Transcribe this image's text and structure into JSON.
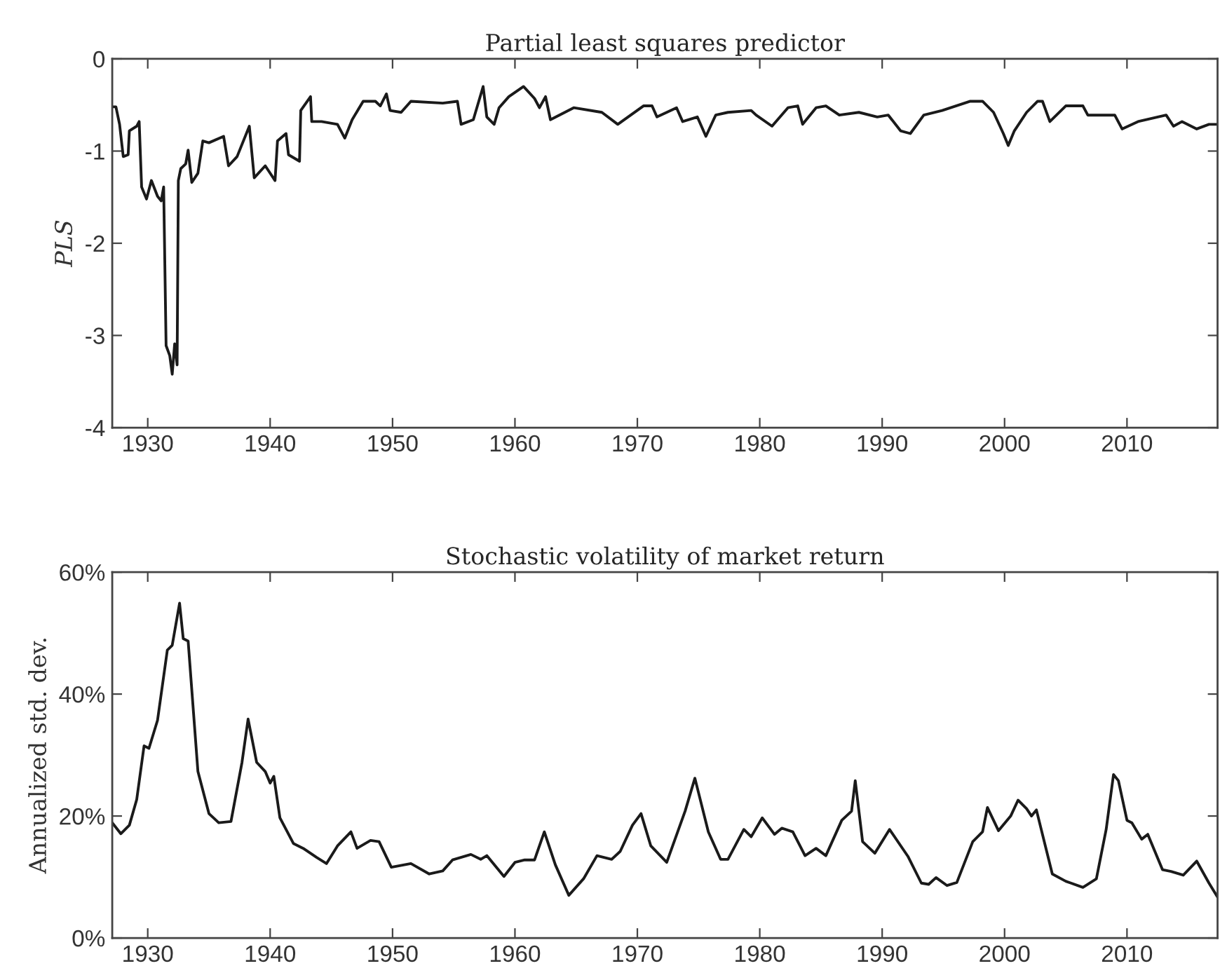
{
  "chart_data": [
    {
      "type": "line",
      "title": "Partial least squares predictor",
      "ylabel": "PLS",
      "xlim": [
        1927.1,
        2017.4
      ],
      "xticks": [
        1930,
        1940,
        1950,
        1960,
        1970,
        1980,
        1990,
        2000,
        2010
      ],
      "ylim": [
        -4,
        0
      ],
      "yticks": [
        {
          "value": -4,
          "label": "-4"
        },
        {
          "value": -3,
          "label": "-3"
        },
        {
          "value": -2,
          "label": "-2"
        },
        {
          "value": -1,
          "label": "-1"
        },
        0
      ],
      "grid": false,
      "legend": false,
      "series": [
        {
          "color": "#1a1a1a",
          "x": [
            1927.1,
            1927.4,
            1927.7,
            1928.0,
            1928.4,
            1928.5,
            1929.1,
            1929.3,
            1929.5,
            1929.9,
            1930.3,
            1930.8,
            1931.1,
            1931.3,
            1931.5,
            1931.8,
            1932.0,
            1932.2,
            1932.4,
            1932.5,
            1932.7,
            1933.1,
            1933.3,
            1933.6,
            1934.1,
            1934.5,
            1935.0,
            1936.2,
            1936.6,
            1937.3,
            1938.3,
            1938.7,
            1939.6,
            1940.4,
            1940.6,
            1941.3,
            1941.5,
            1942.4,
            1942.5,
            1943.3,
            1943.4,
            1944.2,
            1945.5,
            1946.1,
            1946.7,
            1947.6,
            1948.6,
            1949.0,
            1949.5,
            1949.8,
            1950.7,
            1951.5,
            1954.1,
            1955.3,
            1955.6,
            1956.6,
            1957.4,
            1957.7,
            1958.3,
            1958.7,
            1959.5,
            1960.7,
            1961.6,
            1962.0,
            1962.5,
            1962.9,
            1964.8,
            1967.1,
            1968.4,
            1970.5,
            1971.2,
            1971.6,
            1973.2,
            1973.7,
            1974.9,
            1975.6,
            1976.4,
            1977.4,
            1979.3,
            1979.7,
            1981.0,
            1982.3,
            1983.1,
            1983.5,
            1984.6,
            1985.4,
            1986.5,
            1988.1,
            1989.6,
            1990.5,
            1991.5,
            1992.3,
            1993.4,
            1994.9,
            1997.2,
            1998.2,
            1999.1,
            1999.9,
            2000.3,
            2000.8,
            2001.8,
            2002.7,
            2003.1,
            2003.7,
            2005.0,
            2006.4,
            2006.8,
            2009.0,
            2009.6,
            2010.9,
            2013.2,
            2013.8,
            2014.5,
            2015.7,
            2016.7,
            2017.4
          ],
          "values": [
            -0.52,
            -0.52,
            -0.71,
            -1.06,
            -1.04,
            -0.78,
            -0.73,
            -0.68,
            -1.39,
            -1.52,
            -1.32,
            -1.49,
            -1.54,
            -1.39,
            -3.11,
            -3.22,
            -3.42,
            -3.09,
            -3.32,
            -1.32,
            -1.19,
            -1.14,
            -0.99,
            -1.34,
            -1.24,
            -0.89,
            -0.91,
            -0.84,
            -1.16,
            -1.06,
            -0.73,
            -1.29,
            -1.16,
            -1.32,
            -0.89,
            -0.81,
            -1.04,
            -1.11,
            -0.56,
            -0.41,
            -0.68,
            -0.68,
            -0.71,
            -0.86,
            -0.66,
            -0.46,
            -0.46,
            -0.51,
            -0.38,
            -0.56,
            -0.58,
            -0.46,
            -0.48,
            -0.46,
            -0.71,
            -0.66,
            -0.3,
            -0.63,
            -0.71,
            -0.53,
            -0.41,
            -0.3,
            -0.43,
            -0.53,
            -0.41,
            -0.66,
            -0.53,
            -0.58,
            -0.71,
            -0.51,
            -0.51,
            -0.63,
            -0.53,
            -0.68,
            -0.63,
            -0.84,
            -0.61,
            -0.58,
            -0.56,
            -0.61,
            -0.73,
            -0.53,
            -0.51,
            -0.71,
            -0.53,
            -0.51,
            -0.61,
            -0.58,
            -0.63,
            -0.61,
            -0.78,
            -0.81,
            -0.61,
            -0.56,
            -0.46,
            -0.46,
            -0.58,
            -0.81,
            -0.94,
            -0.78,
            -0.58,
            -0.46,
            -0.46,
            -0.68,
            -0.51,
            -0.51,
            -0.61,
            -0.61,
            -0.76,
            -0.68,
            -0.61,
            -0.73,
            -0.68,
            -0.76,
            -0.71,
            -0.71
          ]
        }
      ]
    },
    {
      "type": "line",
      "title": "Stochastic volatility of market return",
      "ylabel": "Annualized std. dev.",
      "xlim": [
        1927.1,
        2017.4
      ],
      "xticks": [
        1930,
        1940,
        1950,
        1960,
        1970,
        1980,
        1990,
        2000,
        2010
      ],
      "ylim": [
        0,
        60
      ],
      "yticks": [
        {
          "value": 0,
          "label": "0%"
        },
        {
          "value": 20,
          "label": "20%"
        },
        {
          "value": 40,
          "label": "40%"
        },
        {
          "value": 60,
          "label": "60%"
        }
      ],
      "grid": false,
      "legend": false,
      "series": [
        {
          "color": "#1a1a1a",
          "x": [
            1927.1,
            1927.8,
            1928.5,
            1929.1,
            1929.7,
            1930.1,
            1930.8,
            1931.6,
            1932.0,
            1932.6,
            1932.9,
            1933.3,
            1934.1,
            1935.0,
            1935.8,
            1936.8,
            1937.7,
            1938.2,
            1938.9,
            1939.6,
            1940.0,
            1940.3,
            1940.8,
            1941.9,
            1942.7,
            1943.8,
            1944.6,
            1945.5,
            1946.6,
            1947.1,
            1948.2,
            1948.9,
            1949.9,
            1951.5,
            1953.0,
            1954.1,
            1954.9,
            1956.4,
            1957.2,
            1957.7,
            1959.1,
            1960.0,
            1960.8,
            1961.6,
            1962.4,
            1963.3,
            1964.4,
            1965.6,
            1966.7,
            1967.9,
            1968.6,
            1969.6,
            1970.3,
            1971.1,
            1972.4,
            1973.9,
            1974.7,
            1975.8,
            1976.8,
            1977.4,
            1978.7,
            1979.3,
            1980.2,
            1981.2,
            1981.8,
            1982.7,
            1983.7,
            1984.6,
            1985.4,
            1986.7,
            1987.5,
            1987.8,
            1988.4,
            1989.4,
            1990.6,
            1992.1,
            1993.2,
            1993.8,
            1994.4,
            1995.3,
            1996.1,
            1997.4,
            1998.2,
            1998.6,
            1999.5,
            2000.5,
            2001.1,
            2001.8,
            2002.2,
            2002.6,
            2003.9,
            2005.0,
            2006.4,
            2007.5,
            2008.3,
            2008.9,
            2009.3,
            2010.0,
            2010.4,
            2011.2,
            2011.7,
            2012.9,
            2013.6,
            2014.6,
            2015.7,
            2016.7,
            2017.4
          ],
          "values": [
            18.9,
            17.1,
            18.5,
            22.7,
            31.5,
            31.1,
            35.7,
            47.2,
            48.0,
            54.9,
            49.1,
            48.7,
            27.3,
            20.4,
            18.9,
            19.1,
            28.8,
            35.9,
            28.8,
            27.3,
            25.4,
            26.5,
            19.7,
            15.5,
            14.7,
            13.2,
            12.2,
            15.1,
            17.4,
            14.7,
            16.0,
            15.8,
            11.6,
            12.2,
            10.5,
            11.0,
            12.8,
            13.7,
            12.9,
            13.5,
            10.1,
            12.4,
            12.8,
            12.8,
            17.4,
            12.0,
            7.0,
            9.7,
            13.5,
            12.9,
            14.2,
            18.5,
            20.4,
            15.1,
            12.4,
            20.8,
            26.2,
            17.4,
            12.9,
            12.9,
            17.8,
            16.6,
            19.7,
            17.0,
            18.0,
            17.4,
            13.5,
            14.7,
            13.5,
            19.3,
            20.8,
            25.8,
            15.8,
            13.9,
            17.8,
            13.4,
            9.0,
            8.8,
            9.9,
            8.6,
            9.1,
            15.8,
            17.4,
            21.4,
            17.6,
            20.0,
            22.6,
            21.2,
            20.0,
            21.0,
            10.5,
            9.3,
            8.3,
            9.7,
            17.8,
            26.8,
            25.8,
            19.3,
            18.9,
            16.2,
            17.0,
            11.2,
            10.9,
            10.3,
            12.6,
            9.0,
            6.7
          ]
        }
      ]
    }
  ]
}
